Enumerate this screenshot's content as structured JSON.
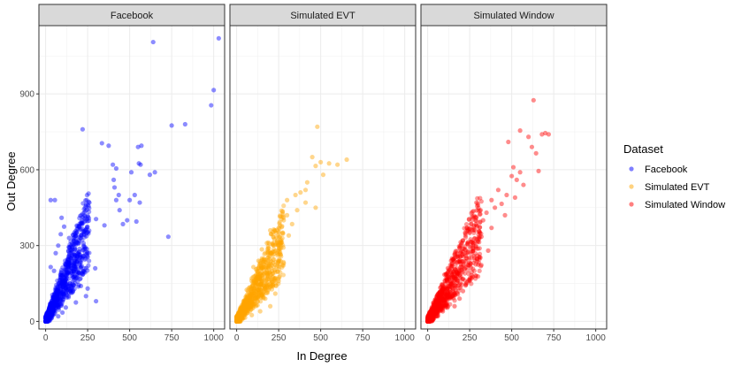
{
  "chart_data": {
    "type": "scatter",
    "title": "",
    "xlabel": "In Degree",
    "ylabel": "Out Degree",
    "xlim": [
      -40,
      1065
    ],
    "ylim": [
      -30,
      1170
    ],
    "x_ticks": [
      0,
      250,
      500,
      750,
      1000
    ],
    "y_ticks": [
      0,
      300,
      600,
      900
    ],
    "grid": true,
    "legend_title": "Dataset",
    "legend_position": "right",
    "series": [
      {
        "name": "Facebook",
        "color": "#0000ff",
        "points": [
          [
            1030,
            1120
          ],
          [
            640,
            1105
          ],
          [
            1000,
            915
          ],
          [
            985,
            855
          ],
          [
            830,
            780
          ],
          [
            750,
            775
          ],
          [
            220,
            760
          ],
          [
            335,
            705
          ],
          [
            375,
            695
          ],
          [
            570,
            695
          ],
          [
            550,
            690
          ],
          [
            555,
            625
          ],
          [
            565,
            620
          ],
          [
            400,
            620
          ],
          [
            420,
            605
          ],
          [
            650,
            590
          ],
          [
            510,
            590
          ],
          [
            620,
            580
          ],
          [
            405,
            560
          ],
          [
            410,
            530
          ],
          [
            435,
            500
          ],
          [
            530,
            500
          ],
          [
            420,
            480
          ],
          [
            500,
            480
          ],
          [
            560,
            470
          ],
          [
            30,
            480
          ],
          [
            55,
            480
          ],
          [
            260,
            470
          ],
          [
            440,
            440
          ],
          [
            95,
            410
          ],
          [
            300,
            405
          ],
          [
            485,
            400
          ],
          [
            540,
            395
          ],
          [
            460,
            385
          ],
          [
            350,
            380
          ],
          [
            110,
            375
          ],
          [
            90,
            345
          ],
          [
            730,
            335
          ],
          [
            140,
            330
          ],
          [
            180,
            320
          ],
          [
            75,
            300
          ],
          [
            60,
            270
          ],
          [
            250,
            255
          ],
          [
            190,
            240
          ],
          [
            30,
            215
          ],
          [
            295,
            210
          ],
          [
            50,
            200
          ],
          [
            130,
            190
          ],
          [
            220,
            185
          ],
          [
            165,
            175
          ],
          [
            100,
            160
          ],
          [
            145,
            150
          ],
          [
            210,
            140
          ],
          [
            250,
            130
          ],
          [
            85,
            120
          ],
          [
            160,
            115
          ],
          [
            40,
            105
          ],
          [
            240,
            100
          ],
          [
            125,
            95
          ],
          [
            70,
            90
          ],
          [
            300,
            80
          ],
          [
            180,
            75
          ],
          [
            25,
            60
          ],
          [
            120,
            55
          ],
          [
            55,
            45
          ],
          [
            15,
            40
          ],
          [
            100,
            35
          ],
          [
            35,
            25
          ],
          [
            75,
            20
          ],
          [
            10,
            10
          ]
        ]
      },
      {
        "name": "Simulated EVT",
        "color": "#ffa500",
        "points": [
          [
            480,
            770
          ],
          [
            450,
            650
          ],
          [
            550,
            625
          ],
          [
            500,
            630
          ],
          [
            655,
            640
          ],
          [
            600,
            620
          ],
          [
            470,
            615
          ],
          [
            515,
            580
          ],
          [
            420,
            550
          ],
          [
            410,
            520
          ],
          [
            380,
            510
          ],
          [
            350,
            500
          ],
          [
            300,
            480
          ],
          [
            410,
            470
          ],
          [
            470,
            450
          ],
          [
            360,
            440
          ],
          [
            300,
            420
          ],
          [
            280,
            400
          ],
          [
            330,
            385
          ],
          [
            250,
            370
          ],
          [
            200,
            360
          ],
          [
            310,
            340
          ],
          [
            260,
            320
          ],
          [
            180,
            310
          ],
          [
            220,
            300
          ],
          [
            150,
            285
          ],
          [
            240,
            270
          ],
          [
            190,
            255
          ],
          [
            130,
            240
          ],
          [
            280,
            230
          ],
          [
            100,
            215
          ],
          [
            210,
            200
          ],
          [
            160,
            185
          ],
          [
            90,
            170
          ],
          [
            250,
            160
          ],
          [
            120,
            150
          ],
          [
            190,
            135
          ],
          [
            60,
            125
          ],
          [
            140,
            115
          ],
          [
            230,
            110
          ],
          [
            80,
            100
          ],
          [
            170,
            90
          ],
          [
            40,
            80
          ],
          [
            110,
            70
          ],
          [
            200,
            60
          ],
          [
            70,
            50
          ],
          [
            140,
            40
          ],
          [
            30,
            35
          ],
          [
            90,
            25
          ],
          [
            50,
            15
          ],
          [
            15,
            8
          ]
        ]
      },
      {
        "name": "Simulated Window",
        "color": "#ff0000",
        "points": [
          [
            630,
            875
          ],
          [
            550,
            755
          ],
          [
            700,
            745
          ],
          [
            720,
            740
          ],
          [
            680,
            740
          ],
          [
            600,
            730
          ],
          [
            480,
            710
          ],
          [
            620,
            690
          ],
          [
            645,
            665
          ],
          [
            510,
            610
          ],
          [
            660,
            595
          ],
          [
            550,
            590
          ],
          [
            500,
            575
          ],
          [
            530,
            560
          ],
          [
            570,
            540
          ],
          [
            420,
            520
          ],
          [
            470,
            500
          ],
          [
            520,
            490
          ],
          [
            380,
            480
          ],
          [
            440,
            465
          ],
          [
            400,
            450
          ],
          [
            350,
            430
          ],
          [
            460,
            420
          ],
          [
            330,
            400
          ],
          [
            290,
            380
          ],
          [
            380,
            370
          ],
          [
            250,
            350
          ],
          [
            320,
            335
          ],
          [
            210,
            320
          ],
          [
            270,
            300
          ],
          [
            190,
            290
          ],
          [
            360,
            280
          ],
          [
            160,
            265
          ],
          [
            230,
            250
          ],
          [
            140,
            240
          ],
          [
            300,
            225
          ],
          [
            120,
            210
          ],
          [
            200,
            200
          ],
          [
            100,
            185
          ],
          [
            170,
            170
          ],
          [
            250,
            160
          ],
          [
            90,
            145
          ],
          [
            150,
            130
          ],
          [
            210,
            120
          ],
          [
            70,
            110
          ],
          [
            130,
            100
          ],
          [
            190,
            90
          ],
          [
            50,
            80
          ],
          [
            110,
            70
          ],
          [
            160,
            60
          ],
          [
            40,
            50
          ],
          [
            90,
            40
          ],
          [
            30,
            30
          ],
          [
            60,
            20
          ],
          [
            15,
            10
          ]
        ]
      }
    ],
    "panels": [
      {
        "label": "Facebook",
        "series": "Facebook"
      },
      {
        "label": "Simulated EVT",
        "series": "Simulated EVT"
      },
      {
        "label": "Simulated Window",
        "series": "Simulated Window"
      }
    ],
    "dense_clusters": [
      {
        "series": "Facebook",
        "x_max": 260,
        "y_max": 370
      },
      {
        "series": "Simulated EVT",
        "x_max": 280,
        "y_max": 320
      },
      {
        "series": "Simulated Window",
        "x_max": 320,
        "y_max": 360
      }
    ]
  }
}
